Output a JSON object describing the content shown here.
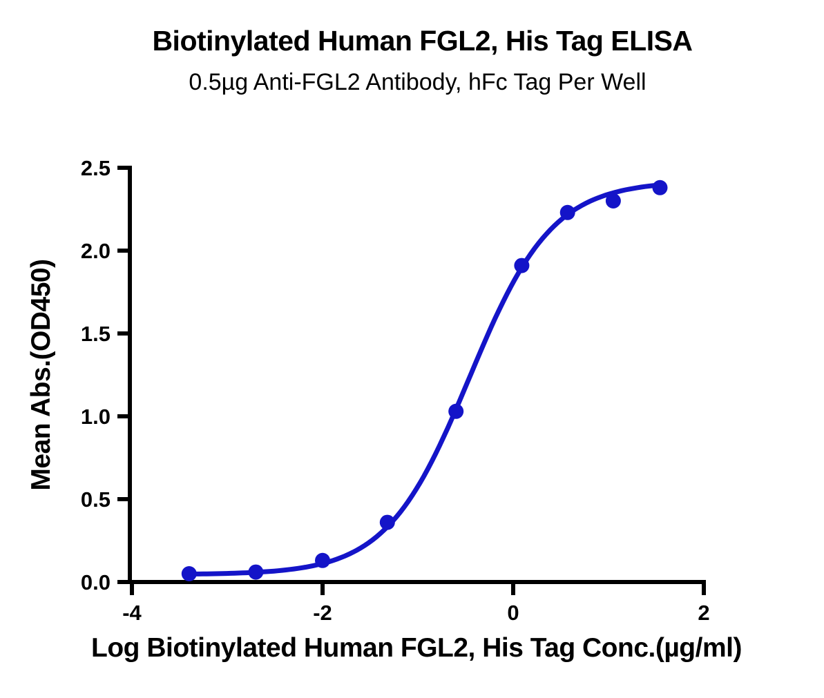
{
  "header": {
    "title": "Biotinylated Human FGL2, His Tag ELISA",
    "subtitle": "0.5µg Anti-FGL2 Antibody, hFc Tag Per Well"
  },
  "chart_data": {
    "type": "scatter",
    "title": "Biotinylated Human FGL2, His Tag ELISA",
    "subtitle": "0.5µg Anti-FGL2 Antibody, hFc Tag Per Well",
    "xlabel": "Log Biotinylated Human FGL2, His Tag Conc.(µg/ml)",
    "ylabel": "Mean Abs.(OD450)",
    "xlim": [
      -4,
      2
    ],
    "ylim": [
      0,
      2.5
    ],
    "x_ticks": [
      -4,
      -2,
      0,
      2
    ],
    "y_ticks": [
      0,
      0.5,
      1,
      1.5,
      2,
      2.5
    ],
    "x_tick_labels": [
      "-4",
      "-2",
      "0",
      "2"
    ],
    "y_tick_labels": [
      "0.0",
      "0.5",
      "1.0",
      "1.5",
      "2.0",
      "2.5"
    ],
    "grid": false,
    "legend": "none",
    "series": [
      {
        "name": "Biotinylated Human FGL2, His Tag",
        "marker": "circle",
        "color": "#1414c8",
        "x": [
          -3.4,
          -2.7,
          -2.0,
          -1.32,
          -0.6,
          0.09,
          0.57,
          1.05,
          1.54
        ],
        "y": [
          0.05,
          0.06,
          0.13,
          0.36,
          1.03,
          1.91,
          2.23,
          2.3,
          2.38
        ]
      }
    ],
    "fit_curve": {
      "model": "4PL",
      "bottom": 0.045,
      "top": 2.42,
      "logEC50": -0.46,
      "hill_slope": 1.0,
      "x_start": -3.42,
      "x_end": 1.55
    }
  }
}
